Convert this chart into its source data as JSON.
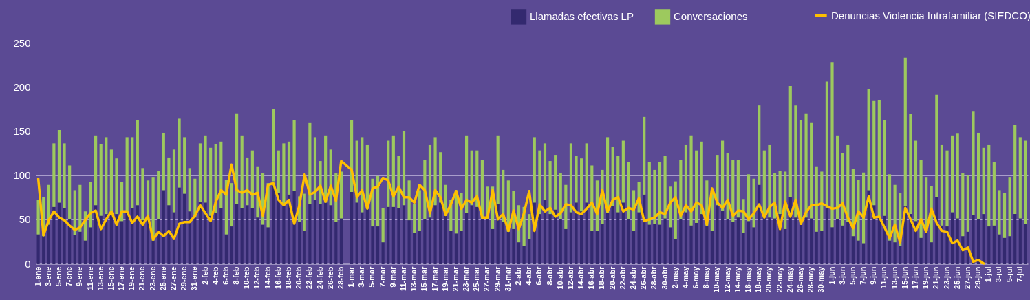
{
  "chart_data": {
    "type": "bar",
    "stacked": true,
    "grid": "y",
    "legend": "top right",
    "ylim": [
      0,
      250
    ],
    "yticks": [
      0,
      50,
      100,
      150,
      200,
      250
    ],
    "categories": [
      "1-ene",
      null,
      "3-ene",
      null,
      "5-ene",
      null,
      "7-ene",
      null,
      "9-ene",
      null,
      "11-ene",
      null,
      "13-ene",
      null,
      "15-ene",
      null,
      "17-ene",
      null,
      "19-ene",
      null,
      "21-ene",
      null,
      "23-ene",
      null,
      "25-ene",
      null,
      "27-ene",
      null,
      "29-ene",
      null,
      "31-ene",
      null,
      "2-feb",
      null,
      "4-feb",
      null,
      "6-feb",
      null,
      "8-feb",
      null,
      "10-feb",
      null,
      "12-feb",
      null,
      "14-feb",
      null,
      "16-feb",
      null,
      "18-feb",
      null,
      "20-feb",
      null,
      "22-feb",
      null,
      "24-feb",
      null,
      "26-feb",
      null,
      "28-feb",
      null,
      "1-mar",
      null,
      "3-mar",
      null,
      "5-mar",
      null,
      "7-mar",
      null,
      "9-mar",
      null,
      "11-mar",
      null,
      "13-mar",
      null,
      "15-mar",
      null,
      "17-mar",
      null,
      "19-mar",
      null,
      "21-mar",
      null,
      "23-mar",
      null,
      "25-mar",
      null,
      "27-mar",
      null,
      "29-mar",
      null,
      "31-mar",
      null,
      "2-abr",
      null,
      "4-abr",
      null,
      "6-abr",
      null,
      "8-abr",
      null,
      "10-abr",
      null,
      "12-abr",
      null,
      "14-abr",
      null,
      "16-abr",
      null,
      "18-abr",
      null,
      "20-abr",
      null,
      "22-abr",
      null,
      "24-abr",
      null,
      "26-abr",
      null,
      "28-abr",
      null,
      "30-abr",
      null,
      "2-may",
      null,
      "4-may",
      null,
      "6-may",
      null,
      "8-may",
      null,
      "10-may",
      null,
      "12-may",
      null,
      "14-may",
      null,
      "16-may",
      null,
      "18-may",
      null,
      "20-may",
      null,
      "22-may",
      null,
      "24-may",
      null,
      "26-may",
      null,
      "28-may",
      null,
      "30-may",
      null,
      "1-jun",
      null,
      "3-jun",
      null,
      "5-jun",
      null,
      "7-jun",
      null,
      "9-jun",
      null,
      "11-jun",
      null,
      "13-jun",
      null,
      "15-jun",
      null,
      "17-jun",
      null,
      "19-jun",
      null,
      "21-jun",
      null,
      "23-jun",
      null,
      "25-jun",
      null,
      "27-jun",
      null,
      "29-jun",
      null,
      "1-jul",
      null,
      "3-jul",
      null,
      "5-jul",
      null,
      "7-jul",
      null
    ],
    "series": [
      {
        "name": "Llamadas efectivas LP",
        "color": "#33296f",
        "values": [
          33,
          31,
          44,
          64,
          69,
          63,
          50,
          32,
          36,
          26,
          41,
          66,
          54,
          56,
          56,
          56,
          48,
          57,
          63,
          66,
          49,
          49,
          26,
          50,
          83,
          66,
          58,
          86,
          79,
          59,
          52,
          70,
          69,
          54,
          57,
          63,
          33,
          42,
          67,
          63,
          66,
          63,
          52,
          44,
          41,
          93,
          80,
          66,
          78,
          82,
          47,
          37,
          67,
          72,
          67,
          69,
          66,
          47,
          51,
          null,
          81,
          69,
          58,
          62,
          42,
          42,
          24,
          64,
          64,
          63,
          66,
          49,
          35,
          37,
          50,
          52,
          66,
          69,
          54,
          37,
          34,
          37,
          57,
          66,
          64,
          50,
          50,
          39,
          67,
          47,
          36,
          39,
          24,
          20,
          28,
          69,
          56,
          72,
          56,
          61,
          50,
          39,
          58,
          69,
          59,
          69,
          37,
          37,
          45,
          57,
          65,
          58,
          69,
          50,
          37,
          58,
          78,
          44,
          45,
          44,
          51,
          41,
          28,
          50,
          58,
          43,
          46,
          56,
          43,
          37,
          66,
          60,
          50,
          47,
          52,
          35,
          48,
          41,
          89,
          52,
          52,
          51,
          56,
          39,
          75,
          52,
          44,
          52,
          51,
          36,
          37,
          63,
          41,
          50,
          43,
          47,
          31,
          26,
          23,
          83,
          66,
          52,
          54,
          26,
          24,
          20,
          65,
          56,
          48,
          29,
          37,
          24,
          75,
          43,
          42,
          58,
          51,
          31,
          36,
          55,
          50,
          56,
          42,
          43,
          33,
          29,
          31,
          56,
          51,
          45
        ]
      },
      {
        "name": "Conversaciones",
        "color": "#9dc95e",
        "values": [
          39,
          44,
          45,
          72,
          82,
          73,
          61,
          51,
          53,
          33,
          51,
          79,
          81,
          87,
          73,
          63,
          44,
          86,
          80,
          96,
          59,
          45,
          72,
          55,
          65,
          54,
          71,
          78,
          64,
          49,
          44,
          66,
          76,
          77,
          78,
          75,
          62,
          49,
          103,
          82,
          54,
          65,
          58,
          58,
          50,
          82,
          48,
          70,
          60,
          80,
          29,
          42,
          92,
          71,
          49,
          76,
          63,
          55,
          53,
          null,
          81,
          70,
          85,
          72,
          54,
          57,
          39,
          75,
          81,
          59,
          84,
          45,
          32,
          46,
          67,
          82,
          77,
          57,
          35,
          35,
          49,
          43,
          88,
          62,
          64,
          67,
          37,
          48,
          78,
          59,
          58,
          43,
          42,
          44,
          28,
          74,
          72,
          64,
          60,
          62,
          52,
          50,
          78,
          53,
          60,
          67,
          74,
          57,
          61,
          86,
          67,
          64,
          70,
          65,
          46,
          34,
          88,
          71,
          61,
          71,
          71,
          46,
          65,
          67,
          76,
          102,
          82,
          82,
          51,
          46,
          57,
          79,
          75,
          70,
          65,
          38,
          53,
          55,
          90,
          76,
          82,
          51,
          49,
          65,
          126,
          127,
          118,
          118,
          108,
          74,
          67,
          143,
          187,
          95,
          82,
          87,
          76,
          69,
          80,
          114,
          118,
          133,
          108,
          75,
          65,
          60,
          168,
          113,
          91,
          88,
          61,
          64,
          116,
          91,
          86,
          87,
          96,
          71,
          64,
          117,
          98,
          75,
          92,
          72,
          50,
          51,
          67,
          101,
          92,
          94
        ]
      },
      {
        "name": "Denuncias Violencia Intrafamiliar (SIEDCO)",
        "type": "line",
        "color": "#ffc000",
        "values": [
          96,
          32,
          49,
          59,
          52,
          49,
          43,
          38,
          41,
          49,
          57,
          60,
          39,
          50,
          59,
          44,
          59,
          59,
          46,
          53,
          44,
          54,
          27,
          36,
          31,
          37,
          28,
          45,
          47,
          47,
          54,
          66,
          57,
          48,
          70,
          83,
          78,
          112,
          83,
          80,
          83,
          78,
          80,
          54,
          89,
          91,
          72,
          66,
          72,
          45,
          66,
          101,
          78,
          81,
          88,
          70,
          88,
          71,
          116,
          111,
          106,
          75,
          83,
          62,
          85,
          87,
          97,
          94,
          76,
          87,
          75,
          75,
          69,
          89,
          83,
          57,
          83,
          75,
          55,
          67,
          82,
          62,
          72,
          69,
          76,
          52,
          52,
          83,
          50,
          56,
          37,
          60,
          39,
          57,
          82,
          37,
          67,
          59,
          63,
          53,
          57,
          67,
          66,
          58,
          56,
          62,
          69,
          56,
          83,
          59,
          72,
          75,
          59,
          63,
          61,
          74,
          48,
          50,
          52,
          58,
          56,
          69,
          75,
          54,
          66,
          59,
          69,
          66,
          44,
          85,
          69,
          63,
          72,
          54,
          60,
          59,
          50,
          57,
          67,
          52,
          64,
          69,
          39,
          70,
          53,
          72,
          45,
          58,
          66,
          66,
          68,
          65,
          62,
          63,
          68,
          52,
          40,
          59,
          52,
          76,
          52,
          53,
          41,
          29,
          44,
          24,
          63,
          50,
          37,
          50,
          36,
          62,
          46,
          37,
          36,
          23,
          26,
          15,
          18,
          2,
          4,
          0,
          null,
          null,
          null,
          null,
          null,
          null,
          null,
          null
        ]
      }
    ]
  }
}
